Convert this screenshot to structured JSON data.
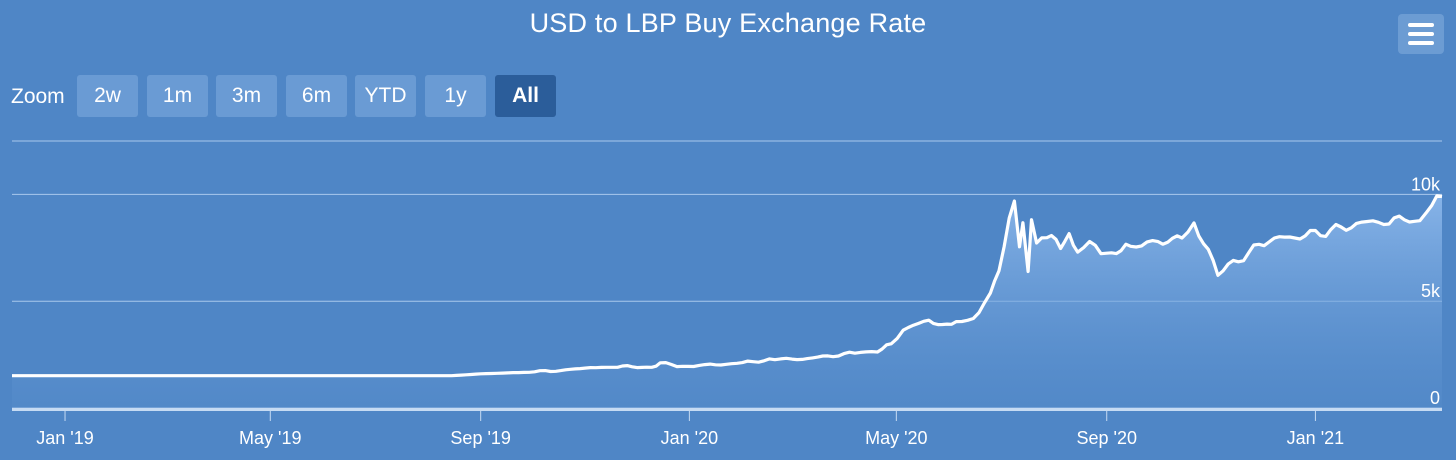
{
  "menu": {
    "icon": "hamburger-menu-icon"
  },
  "zoom": {
    "label": "Zoom",
    "buttons": [
      {
        "label": "2w",
        "active": false
      },
      {
        "label": "1m",
        "active": false
      },
      {
        "label": "3m",
        "active": false
      },
      {
        "label": "6m",
        "active": false
      },
      {
        "label": "YTD",
        "active": false
      },
      {
        "label": "1y",
        "active": false
      },
      {
        "label": "All",
        "active": true
      }
    ]
  },
  "colors": {
    "background": "#4f86c6",
    "line": "#ffffff",
    "area_top": "#8ab6ea",
    "active_button": "#2b5d9a",
    "button": "#6a9bd4"
  },
  "chart_data": {
    "type": "area",
    "title": "USD to LBP Buy Exchange Rate",
    "xlabel": "",
    "ylabel": "",
    "x_tick_labels": [
      "Jan '19",
      "May '19",
      "Sep '19",
      "Jan '20",
      "May '20",
      "Sep '20",
      "Jan '21"
    ],
    "y_tick_labels": [
      "0",
      "5k",
      "10k"
    ],
    "ylim": [
      0,
      12500
    ],
    "grid": "horizontal",
    "series": [
      {
        "x": [
          "2018-12-01",
          "2019-01-01",
          "2019-03-01",
          "2019-05-01",
          "2019-07-01",
          "2019-08-15",
          "2019-09-01",
          "2019-09-20",
          "2019-10-15",
          "2019-11-01",
          "2019-11-20",
          "2019-12-10",
          "2019-12-15",
          "2019-12-28",
          "2020-01-10",
          "2020-02-01",
          "2020-02-20",
          "2020-03-01",
          "2020-03-25",
          "2020-04-10",
          "2020-04-20",
          "2020-04-28",
          "2020-05-05",
          "2020-05-20",
          "2020-05-28",
          "2020-06-05",
          "2020-06-15",
          "2020-06-25",
          "2020-06-30",
          "2020-07-03",
          "2020-07-06",
          "2020-07-09",
          "2020-07-12",
          "2020-07-14",
          "2020-07-17",
          "2020-07-19",
          "2020-07-22",
          "2020-07-25",
          "2020-07-28",
          "2020-08-05",
          "2020-08-10",
          "2020-08-15",
          "2020-08-22",
          "2020-09-01",
          "2020-09-15",
          "2020-10-01",
          "2020-10-15",
          "2020-10-22",
          "2020-11-05",
          "2020-11-20",
          "2020-12-05",
          "2020-12-20",
          "2021-01-10",
          "2021-01-25",
          "2021-02-10",
          "2021-02-25",
          "2021-03-03",
          "2021-03-10",
          "2021-03-16"
        ],
        "y": [
          1510,
          1510,
          1510,
          1510,
          1510,
          1510,
          1600,
          1650,
          1750,
          1850,
          1950,
          1900,
          2100,
          1950,
          2000,
          2100,
          2300,
          2250,
          2450,
          2600,
          2700,
          3000,
          3700,
          4100,
          3900,
          4000,
          4200,
          5400,
          6500,
          7700,
          8900,
          9600,
          7500,
          8900,
          6400,
          8600,
          7800,
          8200,
          8000,
          7700,
          8000,
          7300,
          7600,
          7200,
          7600,
          7700,
          8100,
          8700,
          6300,
          7100,
          7900,
          8000,
          8300,
          8600,
          8800,
          8800,
          8800,
          9400,
          9900
        ]
      }
    ]
  }
}
